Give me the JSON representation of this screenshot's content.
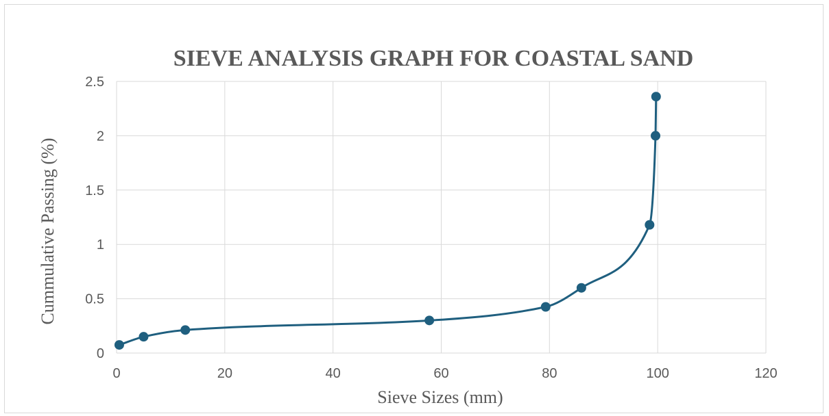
{
  "chart_data": {
    "type": "scatter",
    "title": "SIEVE ANALYSIS GRAPH FOR COASTAL SAND",
    "xlabel": "Sieve Sizes (mm)",
    "ylabel": "Cummulative Passing (%)",
    "xlim": [
      0,
      120
    ],
    "ylim": [
      0,
      2.5
    ],
    "xticks": [
      0,
      20,
      40,
      60,
      80,
      100,
      120
    ],
    "yticks": [
      0,
      0.5,
      1,
      1.5,
      2,
      2.5
    ],
    "xtick_labels": [
      "0",
      "20",
      "40",
      "60",
      "80",
      "100",
      "120"
    ],
    "ytick_labels": [
      "0",
      "0.5",
      "1",
      "1.5",
      "2",
      "2.5"
    ],
    "grid": true,
    "smooth": true,
    "color": "#1f5f7f",
    "series": [
      {
        "x": [
          0.5,
          5,
          12.7,
          57.8,
          79.3,
          85.9,
          98.5,
          99.6,
          99.7
        ],
        "y": [
          0.075,
          0.15,
          0.212,
          0.3,
          0.425,
          0.6,
          1.18,
          2.0,
          2.36
        ]
      }
    ]
  }
}
